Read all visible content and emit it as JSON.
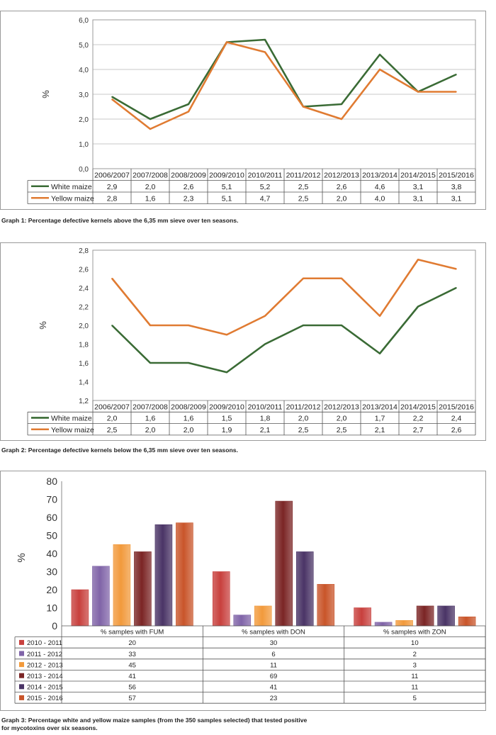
{
  "chart_data": [
    {
      "type": "line",
      "title": "",
      "ylabel": "%",
      "ylim": [
        0,
        6
      ],
      "yticks": [
        "0,0",
        "1,0",
        "2,0",
        "3,0",
        "4,0",
        "5,0",
        "6,0"
      ],
      "categories": [
        "2006/2007",
        "2007/2008",
        "2008/2009",
        "2009/2010",
        "2010/2011",
        "2011/2012",
        "2012/2013",
        "2013/2014",
        "2014/2015",
        "2015/2016"
      ],
      "series": [
        {
          "name": "White maize",
          "color": "#3a6b35",
          "values": [
            2.9,
            2.0,
            2.6,
            5.1,
            5.2,
            2.5,
            2.6,
            4.6,
            3.1,
            3.8
          ],
          "labels": [
            "2,9",
            "2,0",
            "2,6",
            "5,1",
            "5,2",
            "2,5",
            "2,6",
            "4,6",
            "3,1",
            "3,8"
          ]
        },
        {
          "name": "Yellow maize",
          "color": "#e07b32",
          "values": [
            2.8,
            1.6,
            2.3,
            5.1,
            4.7,
            2.5,
            2.0,
            4.0,
            3.1,
            3.1
          ],
          "labels": [
            "2,8",
            "1,6",
            "2,3",
            "5,1",
            "4,7",
            "2,5",
            "2,0",
            "4,0",
            "3,1",
            "3,1"
          ]
        }
      ],
      "grid": true,
      "caption": "Graph 1: Percentage defective kernels above the 6,35 mm sieve over ten seasons."
    },
    {
      "type": "line",
      "title": "",
      "ylabel": "%",
      "ylim": [
        1.2,
        2.8
      ],
      "yticks": [
        "1,2",
        "1,4",
        "1,6",
        "1,8",
        "2,0",
        "2,2",
        "2,4",
        "2,6",
        "2,8"
      ],
      "categories": [
        "2006/2007",
        "2007/2008",
        "2008/2009",
        "2009/2010",
        "2010/2011",
        "2011/2012",
        "2012/2013",
        "2013/2014",
        "2014/2015",
        "2015/2016"
      ],
      "series": [
        {
          "name": "White maize",
          "color": "#3a6b35",
          "values": [
            2.0,
            1.6,
            1.6,
            1.5,
            1.8,
            2.0,
            2.0,
            1.7,
            2.2,
            2.4
          ],
          "labels": [
            "2,0",
            "1,6",
            "1,6",
            "1,5",
            "1,8",
            "2,0",
            "2,0",
            "1,7",
            "2,2",
            "2,4"
          ]
        },
        {
          "name": "Yellow maize",
          "color": "#e07b32",
          "values": [
            2.5,
            2.0,
            2.0,
            1.9,
            2.1,
            2.5,
            2.5,
            2.1,
            2.7,
            2.6
          ],
          "labels": [
            "2,5",
            "2,0",
            "2,0",
            "1,9",
            "2,1",
            "2,5",
            "2,5",
            "2,1",
            "2,7",
            "2,6"
          ]
        }
      ],
      "grid": false,
      "caption": "Graph 2: Percentage defective kernels below the 6,35 mm sieve over ten seasons."
    },
    {
      "type": "bar",
      "title": "",
      "ylabel": "%",
      "ylim": [
        0,
        80
      ],
      "yticks": [
        "0",
        "10",
        "20",
        "30",
        "40",
        "50",
        "60",
        "70",
        "80"
      ],
      "categories": [
        "% samples with FUM",
        "% samples with DON",
        "% samples with ZON"
      ],
      "series": [
        {
          "name": "2010 - 2011",
          "color": "#c8403d",
          "values": [
            20,
            30,
            10
          ]
        },
        {
          "name": "2011 - 2012",
          "color": "#8064a8",
          "values": [
            33,
            6,
            2
          ]
        },
        {
          "name": "2012 - 2013",
          "color": "#f29a3c",
          "values": [
            45,
            11,
            3
          ]
        },
        {
          "name": "2013 - 2014",
          "color": "#7b2525",
          "values": [
            41,
            69,
            11
          ]
        },
        {
          "name": "2014 - 2015",
          "color": "#4a3466",
          "values": [
            56,
            41,
            11
          ]
        },
        {
          "name": "2015 - 2016",
          "color": "#c9552a",
          "values": [
            57,
            23,
            5
          ]
        }
      ],
      "grid": false,
      "caption": "Graph 3: Percentage white and yellow maize samples (from the 350 samples selected) that tested positive\nfor mycotoxins over six seasons."
    }
  ]
}
